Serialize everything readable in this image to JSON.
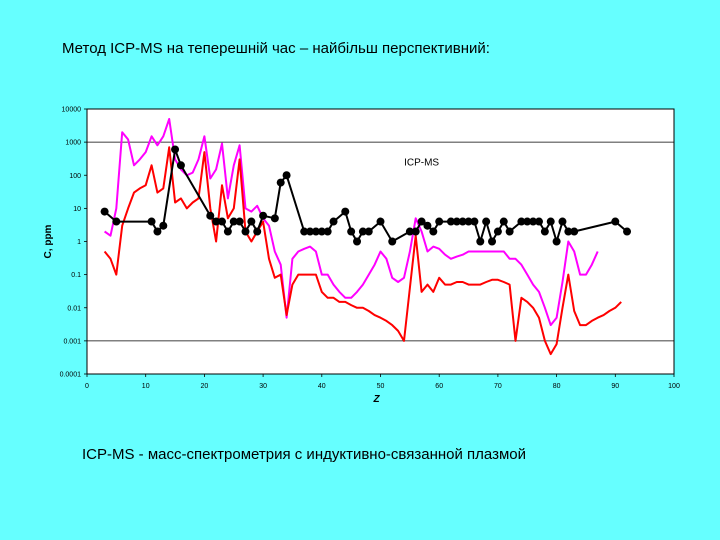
{
  "slide": {
    "title": "Метод ICP-MS на теперешній час – найбільш перспективний:",
    "caption": "ICP-MS - масс-спектрометрия с индуктивно-связанной плазмой"
  },
  "chart_data": {
    "type": "line",
    "xlabel": "Z",
    "ylabel": "C, ppm",
    "xlim": [
      0,
      100
    ],
    "ylim": [
      0.0001,
      10000
    ],
    "yscale": "log",
    "x_ticks": [
      0,
      10,
      20,
      30,
      40,
      50,
      60,
      70,
      80,
      90,
      100
    ],
    "y_ticks": [
      {
        "value": 10000,
        "label": "10000"
      },
      {
        "value": 1000,
        "label": "1000"
      },
      {
        "value": 100,
        "label": "100"
      },
      {
        "value": 10,
        "label": "10"
      },
      {
        "value": 1,
        "label": "1"
      },
      {
        "value": 0.1,
        "label": "0.1"
      },
      {
        "value": 0.01,
        "label": "0.01"
      },
      {
        "value": 0.001,
        "label": "0.001"
      },
      {
        "value": 0.0001,
        "label": "0.0001"
      }
    ],
    "gridlines_y": [
      1000,
      0.001
    ],
    "annotations": [
      {
        "text": "ICP-MS",
        "x": 57,
        "y": 200
      }
    ],
    "series": [
      {
        "color": "#FF00FF",
        "points": [
          [
            3,
            2
          ],
          [
            4,
            1.5
          ],
          [
            5,
            10
          ],
          [
            6,
            2000
          ],
          [
            7,
            1200
          ],
          [
            8,
            200
          ],
          [
            9,
            300
          ],
          [
            10,
            500
          ],
          [
            11,
            1500
          ],
          [
            12,
            800
          ],
          [
            13,
            1500
          ],
          [
            14,
            5000
          ],
          [
            15,
            300
          ],
          [
            16,
            150
          ],
          [
            17,
            100
          ],
          [
            18,
            120
          ],
          [
            19,
            300
          ],
          [
            20,
            1500
          ],
          [
            21,
            80
          ],
          [
            22,
            150
          ],
          [
            23,
            900
          ],
          [
            24,
            20
          ],
          [
            25,
            200
          ],
          [
            26,
            800
          ],
          [
            27,
            10
          ],
          [
            28,
            8
          ],
          [
            29,
            12
          ],
          [
            30,
            5
          ],
          [
            31,
            3
          ],
          [
            32,
            0.5
          ],
          [
            33,
            0.2
          ],
          [
            34,
            0.005
          ],
          [
            35,
            0.3
          ],
          [
            36,
            0.5
          ],
          [
            37,
            0.6
          ],
          [
            38,
            0.7
          ],
          [
            39,
            0.5
          ],
          [
            40,
            0.1
          ],
          [
            41,
            0.1
          ],
          [
            42,
            0.05
          ],
          [
            43,
            0.03
          ],
          [
            44,
            0.02
          ],
          [
            45,
            0.02
          ],
          [
            46,
            0.03
          ],
          [
            47,
            0.05
          ],
          [
            48,
            0.1
          ],
          [
            49,
            0.2
          ],
          [
            50,
            0.5
          ],
          [
            51,
            0.3
          ],
          [
            52,
            0.08
          ],
          [
            53,
            0.06
          ],
          [
            54,
            0.08
          ],
          [
            55,
            0.5
          ],
          [
            56,
            5
          ],
          [
            57,
            2
          ],
          [
            58,
            0.5
          ],
          [
            59,
            0.7
          ],
          [
            60,
            0.6
          ],
          [
            61,
            0.4
          ],
          [
            62,
            0.3
          ],
          [
            63,
            0.35
          ],
          [
            64,
            0.4
          ],
          [
            65,
            0.5
          ],
          [
            66,
            0.5
          ],
          [
            67,
            0.5
          ],
          [
            68,
            0.5
          ],
          [
            69,
            0.5
          ],
          [
            70,
            0.5
          ],
          [
            71,
            0.5
          ],
          [
            72,
            0.3
          ],
          [
            73,
            0.3
          ],
          [
            74,
            0.2
          ],
          [
            75,
            0.1
          ],
          [
            76,
            0.05
          ],
          [
            77,
            0.03
          ],
          [
            78,
            0.01
          ],
          [
            79,
            0.003
          ],
          [
            80,
            0.005
          ],
          [
            81,
            0.06
          ],
          [
            82,
            1
          ],
          [
            83,
            0.5
          ],
          [
            84,
            0.1
          ],
          [
            85,
            0.1
          ],
          [
            86,
            0.2
          ],
          [
            87,
            0.5
          ]
        ]
      },
      {
        "color": "#FF0000",
        "points": [
          [
            3,
            0.5
          ],
          [
            4,
            0.3
          ],
          [
            5,
            0.1
          ],
          [
            6,
            3
          ],
          [
            7,
            10
          ],
          [
            8,
            30
          ],
          [
            9,
            40
          ],
          [
            10,
            50
          ],
          [
            11,
            200
          ],
          [
            12,
            30
          ],
          [
            13,
            40
          ],
          [
            14,
            700
          ],
          [
            15,
            15
          ],
          [
            16,
            20
          ],
          [
            17,
            10
          ],
          [
            18,
            15
          ],
          [
            19,
            20
          ],
          [
            20,
            500
          ],
          [
            21,
            10
          ],
          [
            22,
            1
          ],
          [
            23,
            50
          ],
          [
            24,
            5
          ],
          [
            25,
            10
          ],
          [
            26,
            300
          ],
          [
            27,
            2
          ],
          [
            28,
            1
          ],
          [
            29,
            2
          ],
          [
            30,
            4
          ],
          [
            31,
            0.3
          ],
          [
            32,
            0.08
          ],
          [
            33,
            0.1
          ],
          [
            34,
            0.006
          ],
          [
            35,
            0.05
          ],
          [
            36,
            0.1
          ],
          [
            37,
            0.1
          ],
          [
            38,
            0.1
          ],
          [
            39,
            0.1
          ],
          [
            40,
            0.03
          ],
          [
            41,
            0.02
          ],
          [
            42,
            0.02
          ],
          [
            43,
            0.015
          ],
          [
            44,
            0.015
          ],
          [
            45,
            0.012
          ],
          [
            46,
            0.01
          ],
          [
            47,
            0.01
          ],
          [
            48,
            0.008
          ],
          [
            49,
            0.006
          ],
          [
            50,
            0.005
          ],
          [
            51,
            0.004
          ],
          [
            52,
            0.003
          ],
          [
            53,
            0.002
          ],
          [
            54,
            0.001
          ],
          [
            55,
            0.04
          ],
          [
            56,
            1.5
          ],
          [
            57,
            0.03
          ],
          [
            58,
            0.05
          ],
          [
            59,
            0.03
          ],
          [
            60,
            0.08
          ],
          [
            61,
            0.05
          ],
          [
            62,
            0.05
          ],
          [
            63,
            0.06
          ],
          [
            64,
            0.06
          ],
          [
            65,
            0.05
          ],
          [
            66,
            0.05
          ],
          [
            67,
            0.05
          ],
          [
            68,
            0.06
          ],
          [
            69,
            0.07
          ],
          [
            70,
            0.07
          ],
          [
            71,
            0.06
          ],
          [
            72,
            0.05
          ],
          [
            73,
            0.001
          ],
          [
            74,
            0.02
          ],
          [
            75,
            0.015
          ],
          [
            76,
            0.01
          ],
          [
            77,
            0.005
          ],
          [
            78,
            0.001
          ],
          [
            79,
            0.0004
          ],
          [
            80,
            0.0008
          ],
          [
            81,
            0.01
          ],
          [
            82,
            0.1
          ],
          [
            83,
            0.008
          ],
          [
            84,
            0.003
          ],
          [
            85,
            0.003
          ],
          [
            86,
            0.004
          ],
          [
            87,
            0.005
          ],
          [
            88,
            0.006
          ],
          [
            89,
            0.008
          ],
          [
            90,
            0.01
          ],
          [
            91,
            0.015
          ]
        ]
      },
      {
        "name": "ICP-MS",
        "color": "#000000",
        "markers": true,
        "points": [
          [
            3,
            8
          ],
          [
            5,
            4
          ],
          [
            11,
            4
          ],
          [
            12,
            2
          ],
          [
            13,
            3
          ],
          [
            15,
            600
          ],
          [
            16,
            200
          ],
          [
            21,
            6
          ],
          [
            22,
            4
          ],
          [
            23,
            4
          ],
          [
            24,
            2
          ],
          [
            25,
            4
          ],
          [
            26,
            4
          ],
          [
            27,
            2
          ],
          [
            28,
            4
          ],
          [
            29,
            2
          ],
          [
            30,
            6
          ],
          [
            32,
            5
          ],
          [
            33,
            60
          ],
          [
            34,
            100
          ],
          [
            37,
            2
          ],
          [
            38,
            2
          ],
          [
            39,
            2
          ],
          [
            40,
            2
          ],
          [
            41,
            2
          ],
          [
            42,
            4
          ],
          [
            44,
            8
          ],
          [
            45,
            2
          ],
          [
            46,
            1
          ],
          [
            47,
            2
          ],
          [
            48,
            2
          ],
          [
            50,
            4
          ],
          [
            52,
            1
          ],
          [
            55,
            2
          ],
          [
            56,
            2
          ],
          [
            57,
            4
          ],
          [
            58,
            3
          ],
          [
            59,
            2
          ],
          [
            60,
            4
          ],
          [
            62,
            4
          ],
          [
            63,
            4
          ],
          [
            64,
            4
          ],
          [
            65,
            4
          ],
          [
            66,
            4
          ],
          [
            67,
            1
          ],
          [
            68,
            4
          ],
          [
            69,
            1
          ],
          [
            70,
            2
          ],
          [
            71,
            4
          ],
          [
            72,
            2
          ],
          [
            74,
            4
          ],
          [
            75,
            4
          ],
          [
            76,
            4
          ],
          [
            77,
            4
          ],
          [
            78,
            2
          ],
          [
            79,
            4
          ],
          [
            80,
            1
          ],
          [
            81,
            4
          ],
          [
            82,
            2
          ],
          [
            83,
            2
          ],
          [
            90,
            4
          ],
          [
            92,
            2
          ]
        ]
      }
    ]
  }
}
